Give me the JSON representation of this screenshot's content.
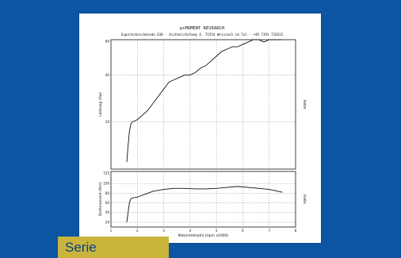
{
  "header": {
    "company": "p+MOMENT RESEARCH",
    "address": "Superbikeschmiede 636 - Aichholzhofweg 4, 71554 Weissach im Tal - +49 7191 732612"
  },
  "badge": {
    "label": "Serie"
  },
  "colors": {
    "background": "#0b55a3",
    "badge": "#c9b53b",
    "badge_text": "#0b3f86"
  },
  "chart_data": [
    {
      "type": "line",
      "ylabel": "Leistung (Kw)",
      "right_label": "Kette",
      "xlim": [
        1,
        8
      ],
      "ylim": [
        0,
        55
      ],
      "y_ticks": [
        20,
        40,
        60
      ],
      "grid": true,
      "series": [
        {
          "x": [
            1.6,
            1.65,
            1.7,
            1.75,
            1.8,
            2.0,
            2.2,
            2.4,
            2.6,
            2.8,
            3.0,
            3.2,
            3.4,
            3.6,
            3.8,
            4.0,
            4.2,
            4.4,
            4.6,
            4.8,
            5.0,
            5.2,
            5.4,
            5.6,
            5.8,
            6.0,
            6.2,
            6.4,
            6.6,
            6.8,
            7.0,
            7.2,
            7.4,
            7.5
          ],
          "y": [
            3,
            10,
            16,
            19,
            20,
            21,
            23,
            25,
            28,
            31,
            34,
            37,
            38,
            39,
            40,
            40,
            41,
            43,
            44,
            46,
            48,
            50,
            51,
            52,
            52,
            53,
            54,
            55,
            55,
            54,
            55,
            55,
            55,
            55
          ]
        }
      ]
    },
    {
      "type": "line",
      "xlabel": "Motordrehzahl (Upm x1000)",
      "ylabel": "Drehmoment (Nm)",
      "right_label": "Kette",
      "xlim": [
        1,
        8
      ],
      "x_ticks": [
        1,
        2,
        3,
        4,
        5,
        6,
        7,
        8
      ],
      "ylim": [
        10,
        125
      ],
      "y_ticks": [
        20,
        40,
        60,
        80,
        100,
        125
      ],
      "grid": true,
      "series": [
        {
          "x": [
            1.6,
            1.65,
            1.7,
            1.75,
            1.8,
            2.0,
            2.3,
            2.6,
            3.0,
            3.4,
            3.8,
            4.2,
            4.6,
            5.0,
            5.4,
            5.8,
            6.2,
            6.6,
            7.0,
            7.5
          ],
          "y": [
            20,
            40,
            60,
            68,
            70,
            72,
            78,
            84,
            88,
            90,
            90,
            89,
            89,
            90,
            92,
            94,
            92,
            90,
            88,
            82
          ]
        }
      ]
    }
  ]
}
